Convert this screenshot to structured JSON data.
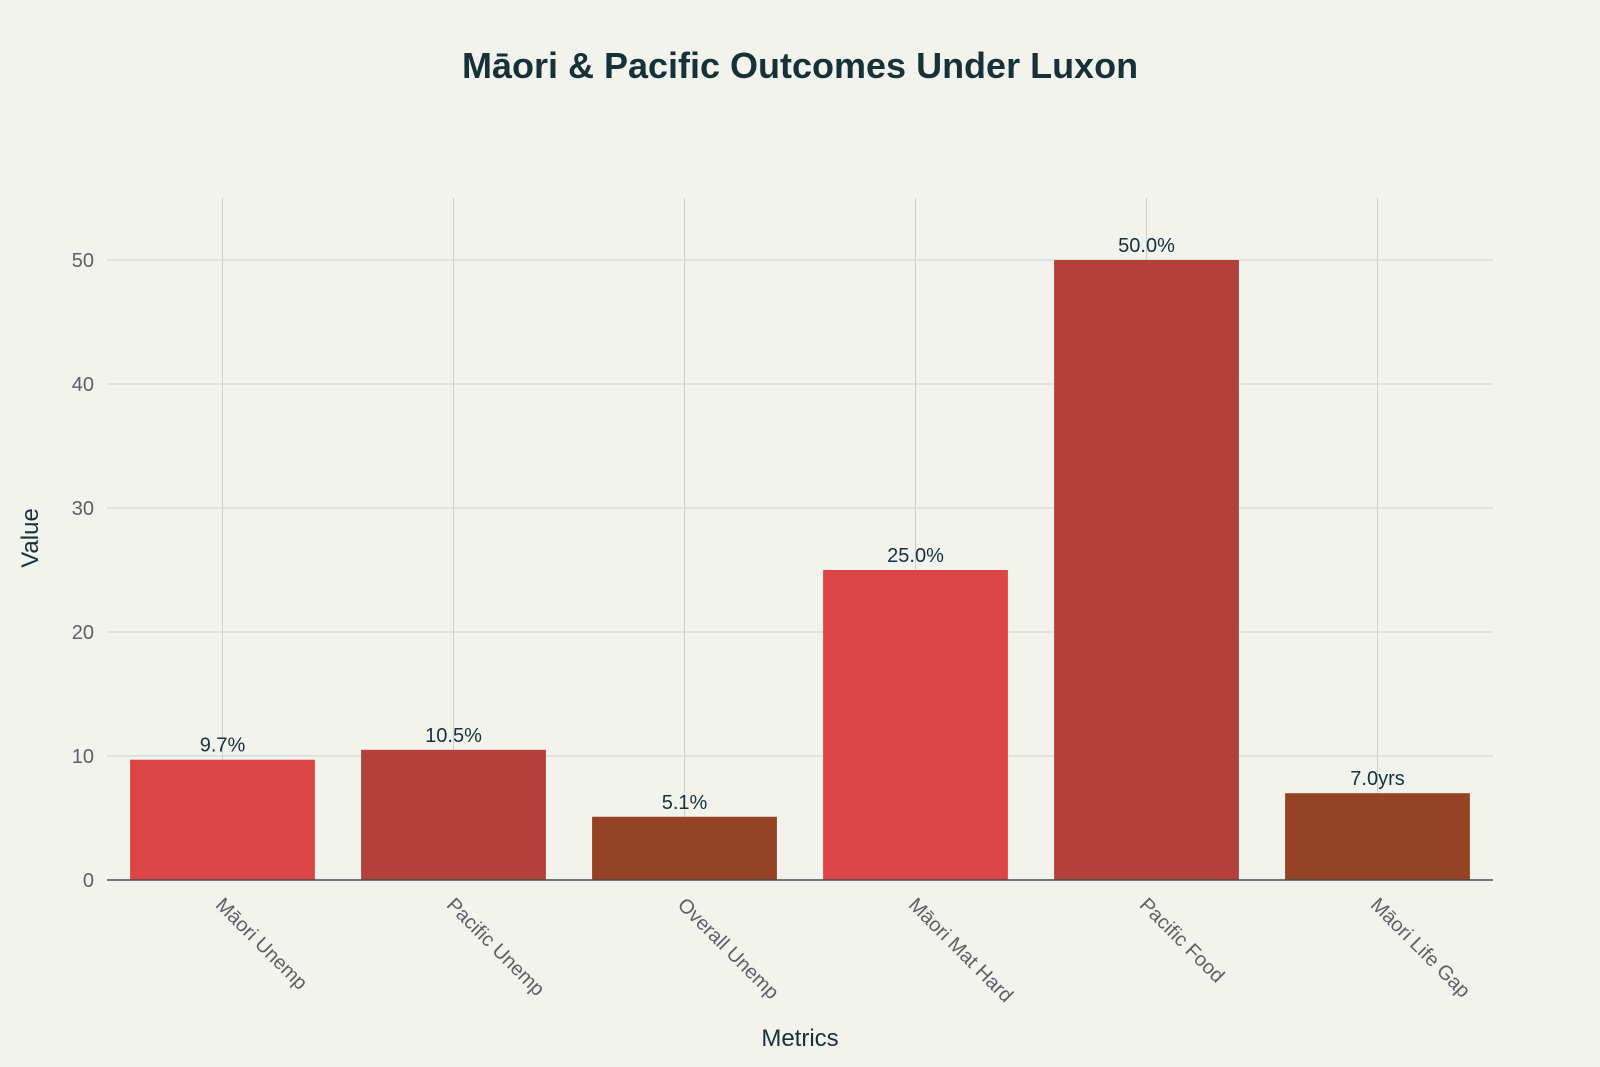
{
  "chart_data": {
    "type": "bar",
    "title": "Māori & Pacific Outcomes Under Luxon",
    "xlabel": "Metrics",
    "ylabel": "Value",
    "ylim": [
      0,
      55
    ],
    "yticks": [
      0,
      10,
      20,
      30,
      40,
      50
    ],
    "categories": [
      "Māori Unemp",
      "Pacific Unemp",
      "Overall Unemp",
      "Māori Mat Hard",
      "Pacific Food",
      "Māori Life Gap"
    ],
    "values": [
      9.7,
      10.5,
      5.1,
      25.0,
      50.0,
      7.0
    ],
    "data_labels": [
      "9.7%",
      "10.5%",
      "5.1%",
      "25.0%",
      "50.0%",
      "7.0yrs"
    ],
    "colors": [
      "#db4545",
      "#b4403c",
      "#944325",
      "#db4545",
      "#b4403c",
      "#944325"
    ],
    "grid": true
  }
}
